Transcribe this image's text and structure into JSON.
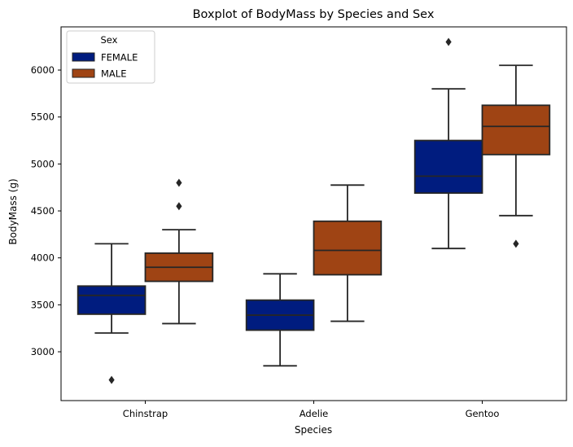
{
  "chart_data": {
    "type": "boxplot",
    "title": "Boxplot of BodyMass by Species and Sex",
    "xlabel": "Species",
    "ylabel": "BodyMass (g)",
    "categories": [
      "Chinstrap",
      "Adelie",
      "Gentoo"
    ],
    "ylim": [
      2480,
      6460
    ],
    "yticks": [
      3000,
      3500,
      4000,
      4500,
      5000,
      5500,
      6000
    ],
    "grid": false,
    "legend": {
      "title": "Sex",
      "placement": "top-left"
    },
    "series": [
      {
        "name": "FEMALE",
        "color": "#001c7f",
        "boxes": [
          {
            "whisker_low": 3200,
            "q1": 3400,
            "median": 3600,
            "q3": 3700,
            "whisker_high": 4150,
            "outliers": [
              2700
            ]
          },
          {
            "whisker_low": 2850,
            "q1": 3230,
            "median": 3390,
            "q3": 3550,
            "whisker_high": 3830,
            "outliers": []
          },
          {
            "whisker_low": 4100,
            "q1": 4690,
            "median": 4870,
            "q3": 5250,
            "whisker_high": 5800,
            "outliers": [
              6300
            ]
          }
        ]
      },
      {
        "name": "MALE",
        "color": "#9f4414",
        "boxes": [
          {
            "whisker_low": 3300,
            "q1": 3750,
            "median": 3900,
            "q3": 4050,
            "whisker_high": 4300,
            "outliers": [
              4550,
              4800
            ]
          },
          {
            "whisker_low": 3325,
            "q1": 3820,
            "median": 4080,
            "q3": 4390,
            "whisker_high": 4775,
            "outliers": []
          },
          {
            "whisker_low": 4450,
            "q1": 5100,
            "median": 5400,
            "q3": 5625,
            "whisker_high": 6050,
            "outliers": [
              4150
            ]
          }
        ]
      }
    ]
  }
}
